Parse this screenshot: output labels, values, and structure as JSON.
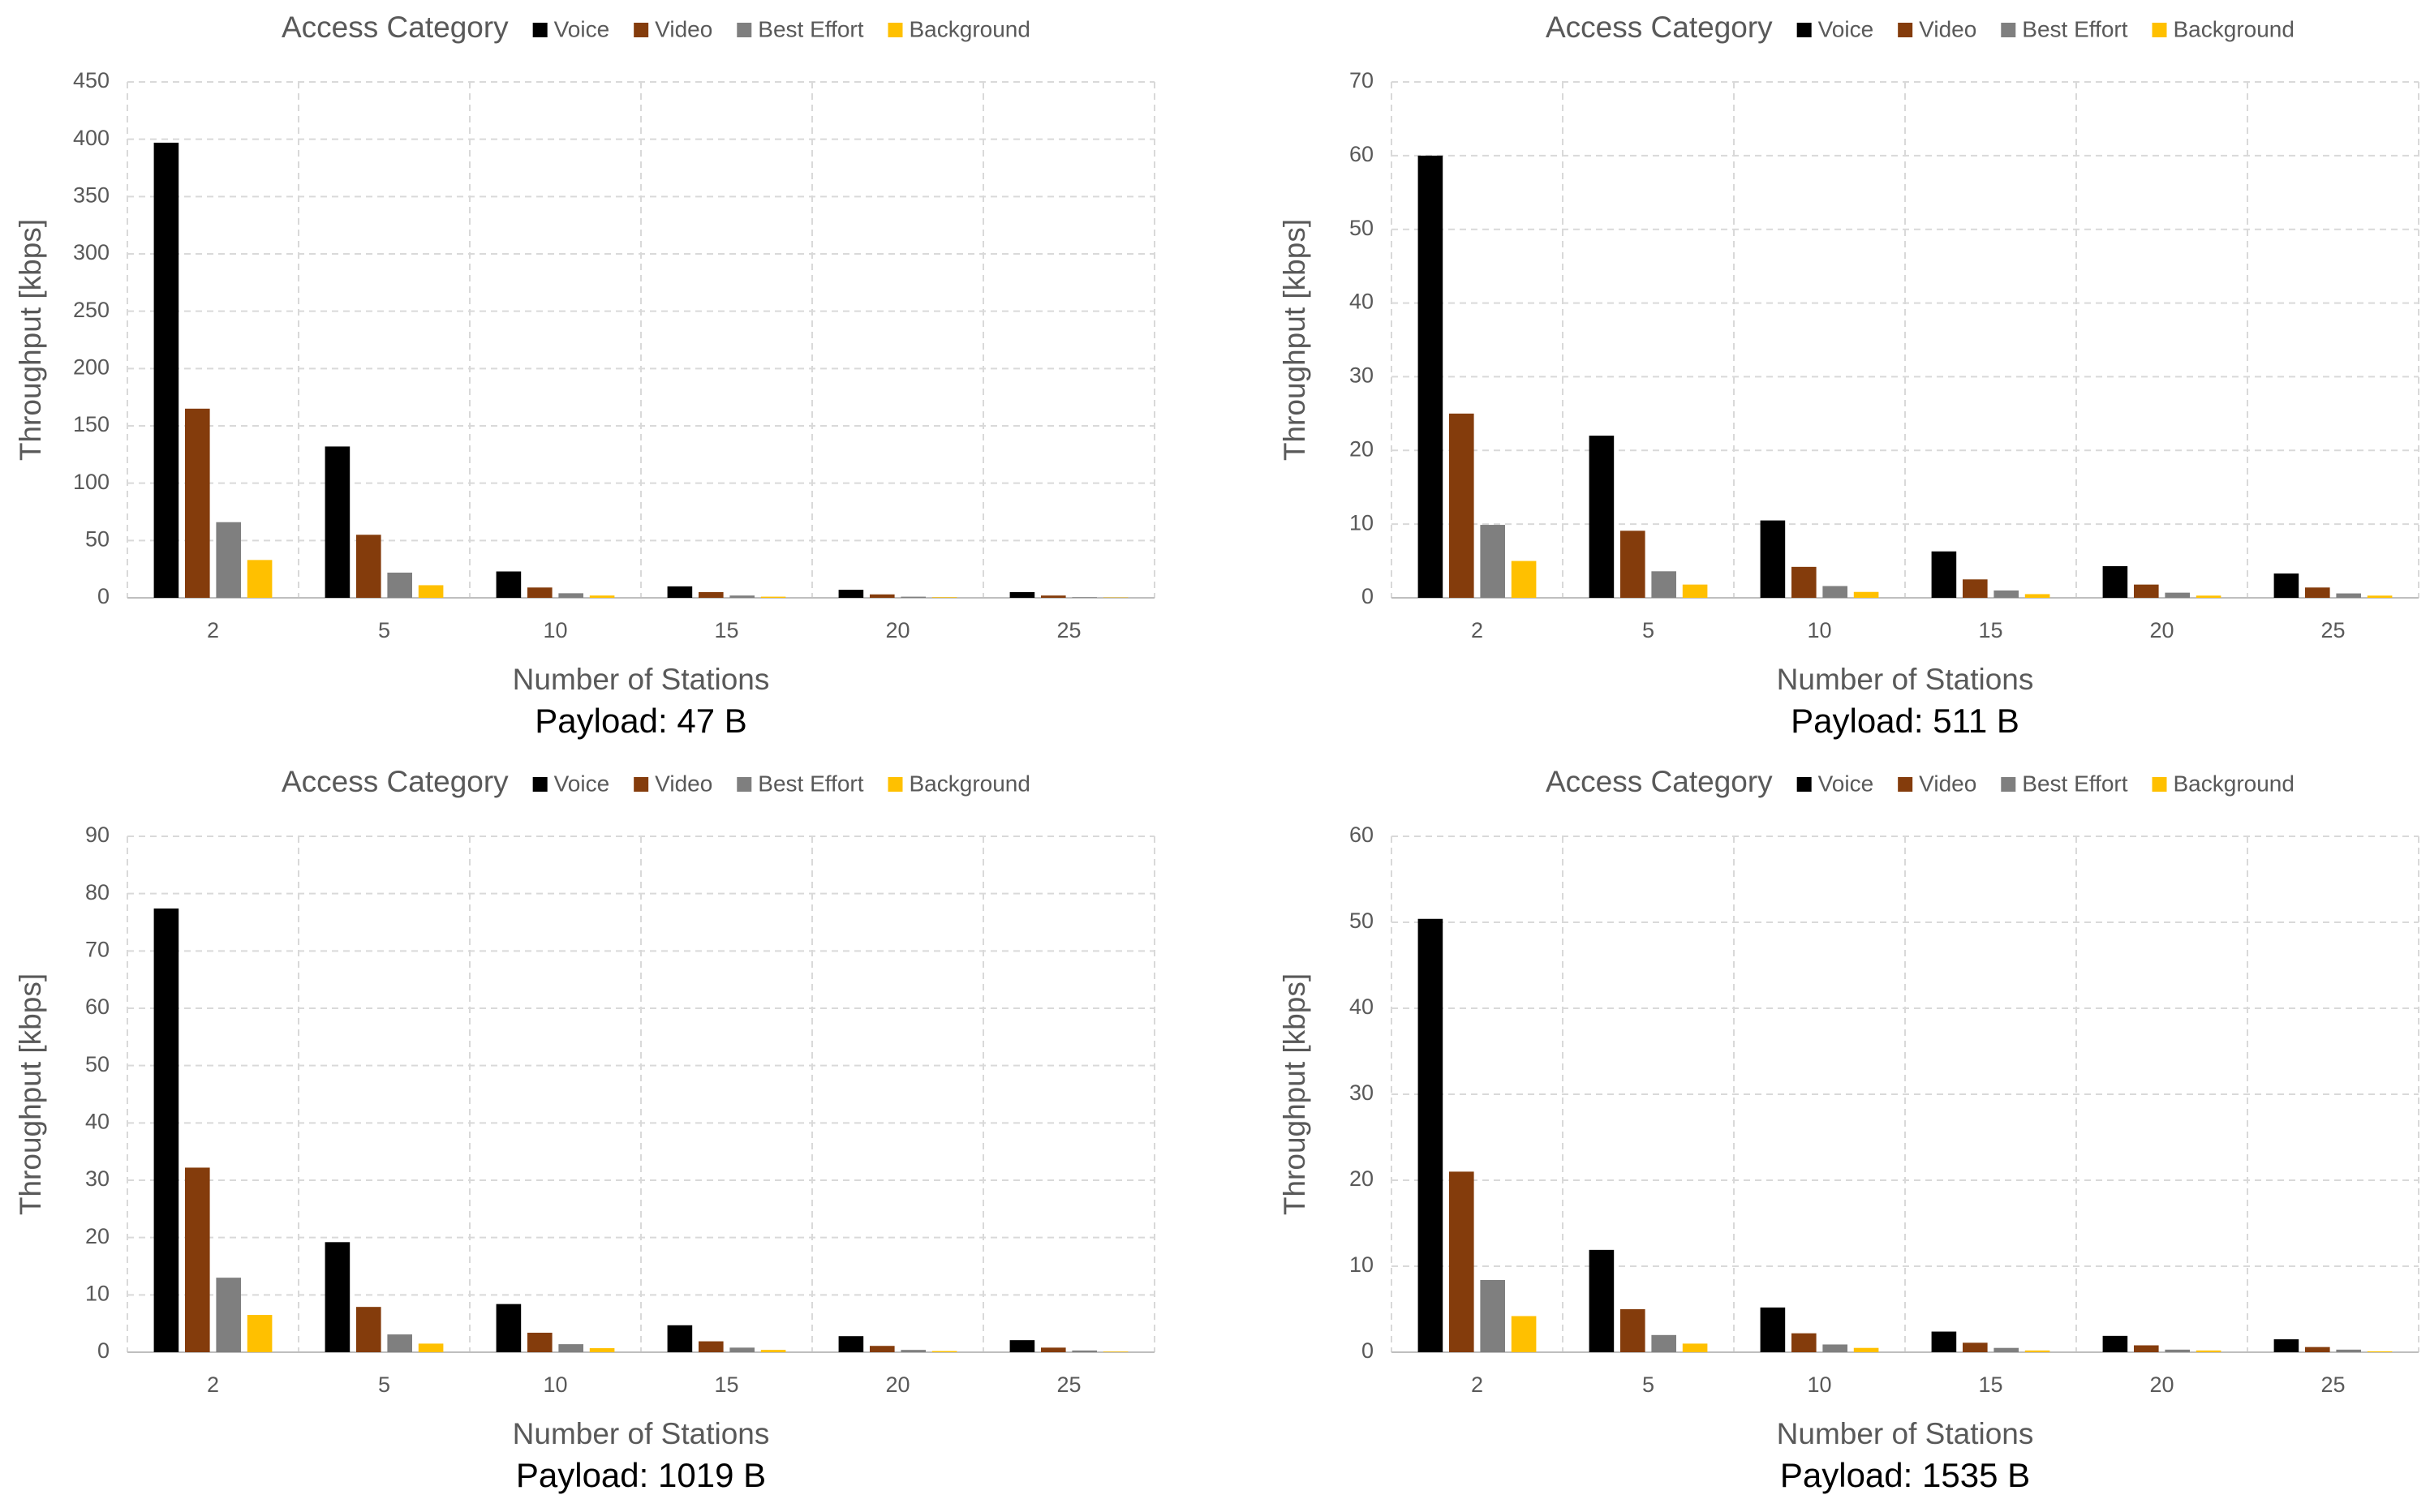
{
  "chart_data": [
    {
      "type": "bar",
      "title": "Payload: 47 B",
      "x_label": "Number of Stations",
      "y_label": "Throughput [kbps]",
      "legend_title": "Access Category",
      "categories": [
        "2",
        "5",
        "10",
        "15",
        "20",
        "25"
      ],
      "series": [
        {
          "name": "Voice",
          "color": "#000000",
          "values": [
            397,
            132,
            23,
            10,
            7,
            5
          ]
        },
        {
          "name": "Video",
          "color": "#843c0c",
          "values": [
            165,
            55,
            9,
            5,
            3,
            2
          ]
        },
        {
          "name": "Best Effort",
          "color": "#7f7f7f",
          "values": [
            66,
            22,
            4,
            2,
            1,
            0.5
          ]
        },
        {
          "name": "Background",
          "color": "#ffc000",
          "values": [
            33,
            11,
            2,
            1,
            0.5,
            0.3
          ]
        }
      ],
      "ylim": [
        0,
        450
      ],
      "yticks": [
        0,
        50,
        100,
        150,
        200,
        250,
        300,
        350,
        400,
        450
      ],
      "grid": true
    },
    {
      "type": "bar",
      "title": "Payload: 511 B",
      "x_label": "Number of Stations",
      "y_label": "Throughput [kbps]",
      "legend_title": "Access Category",
      "categories": [
        "2",
        "5",
        "10",
        "15",
        "20",
        "25"
      ],
      "series": [
        {
          "name": "Voice",
          "color": "#000000",
          "values": [
            60,
            22,
            10.5,
            6.3,
            4.3,
            3.3
          ]
        },
        {
          "name": "Video",
          "color": "#843c0c",
          "values": [
            25,
            9.1,
            4.2,
            2.5,
            1.8,
            1.4
          ]
        },
        {
          "name": "Best Effort",
          "color": "#7f7f7f",
          "values": [
            9.9,
            3.6,
            1.6,
            1.0,
            0.7,
            0.6
          ]
        },
        {
          "name": "Background",
          "color": "#ffc000",
          "values": [
            5,
            1.8,
            0.8,
            0.5,
            0.3,
            0.3
          ]
        }
      ],
      "ylim": [
        0,
        70
      ],
      "yticks": [
        0,
        10,
        20,
        30,
        40,
        50,
        60,
        70
      ],
      "grid": true
    },
    {
      "type": "bar",
      "title": "Payload: 1019 B",
      "x_label": "Number of Stations",
      "y_label": "Throughput [kbps]",
      "legend_title": "Access Category",
      "categories": [
        "2",
        "5",
        "10",
        "15",
        "20",
        "25"
      ],
      "series": [
        {
          "name": "Voice",
          "color": "#000000",
          "values": [
            77.4,
            19.2,
            8.4,
            4.7,
            2.8,
            2.1
          ]
        },
        {
          "name": "Video",
          "color": "#843c0c",
          "values": [
            32.2,
            7.9,
            3.4,
            1.9,
            1.1,
            0.8
          ]
        },
        {
          "name": "Best Effort",
          "color": "#7f7f7f",
          "values": [
            13,
            3.1,
            1.4,
            0.8,
            0.4,
            0.3
          ]
        },
        {
          "name": "Background",
          "color": "#ffc000",
          "values": [
            6.5,
            1.5,
            0.7,
            0.4,
            0.2,
            0.1
          ]
        }
      ],
      "ylim": [
        0,
        90
      ],
      "yticks": [
        0,
        10,
        20,
        30,
        40,
        50,
        60,
        70,
        80,
        90
      ],
      "grid": true
    },
    {
      "type": "bar",
      "title": "Payload: 1535 B",
      "x_label": "Number of Stations",
      "y_label": "Throughput [kbps]",
      "legend_title": "Access Category",
      "categories": [
        "2",
        "5",
        "10",
        "15",
        "20",
        "25"
      ],
      "series": [
        {
          "name": "Voice",
          "color": "#000000",
          "values": [
            50.4,
            11.9,
            5.2,
            2.4,
            1.9,
            1.5
          ]
        },
        {
          "name": "Video",
          "color": "#843c0c",
          "values": [
            21,
            5,
            2.2,
            1.1,
            0.8,
            0.6
          ]
        },
        {
          "name": "Best Effort",
          "color": "#7f7f7f",
          "values": [
            8.4,
            2,
            0.9,
            0.5,
            0.3,
            0.3
          ]
        },
        {
          "name": "Background",
          "color": "#ffc000",
          "values": [
            4.2,
            1,
            0.5,
            0.2,
            0.2,
            0.1
          ]
        }
      ],
      "ylim": [
        0,
        60
      ],
      "yticks": [
        0,
        10,
        20,
        30,
        40,
        50,
        60
      ],
      "grid": true
    }
  ]
}
